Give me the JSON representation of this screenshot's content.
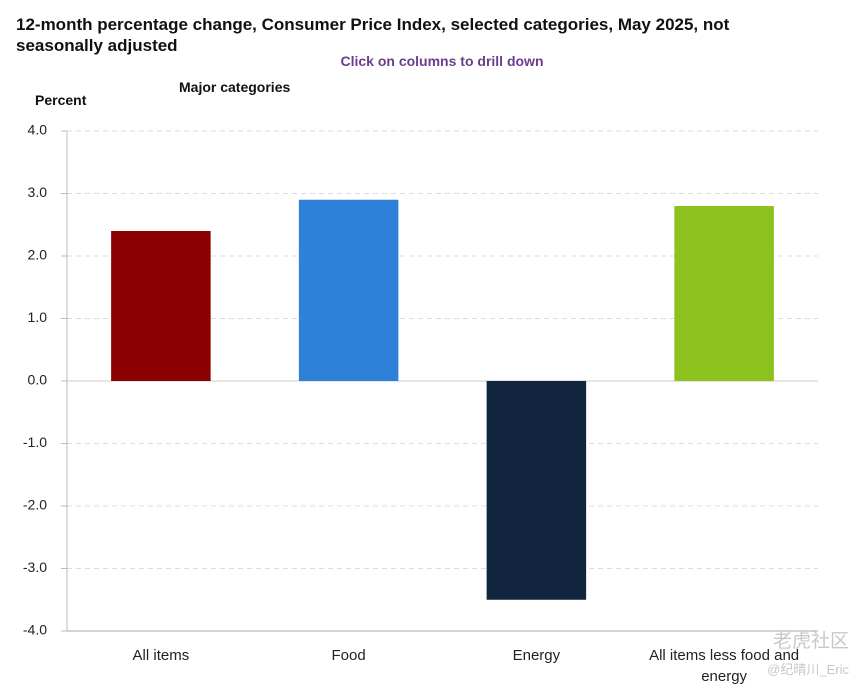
{
  "chart_data": {
    "type": "bar",
    "title": "12-month percentage change, Consumer Price Index, selected categories, May 2025, not seasonally adjusted",
    "subtitle": "Click on columns to drill down",
    "y_axis_label": "Percent",
    "legend_title": "Major categories",
    "categories": [
      "All items",
      "Food",
      "Energy",
      "All items less food and energy"
    ],
    "values": [
      2.4,
      2.9,
      -3.5,
      2.8
    ],
    "colors": [
      "#8b0000",
      "#2f80d8",
      "#10243d",
      "#8cc21e"
    ],
    "ylim": [
      -4,
      4
    ],
    "yticks": [
      {
        "value": 4,
        "label": "4.0"
      },
      {
        "value": 3,
        "label": "3.0"
      },
      {
        "value": 2,
        "label": "2.0"
      },
      {
        "value": 1,
        "label": "1.0"
      },
      {
        "value": 0,
        "label": "0.0"
      },
      {
        "value": -1,
        "label": "-1.0"
      },
      {
        "value": -2,
        "label": "-2.0"
      },
      {
        "value": -3,
        "label": "-3.0"
      },
      {
        "value": -4,
        "label": "-4.0"
      }
    ],
    "grid": true,
    "watermark": [
      "老虎社区",
      "@纪晴川_Eric"
    ]
  }
}
